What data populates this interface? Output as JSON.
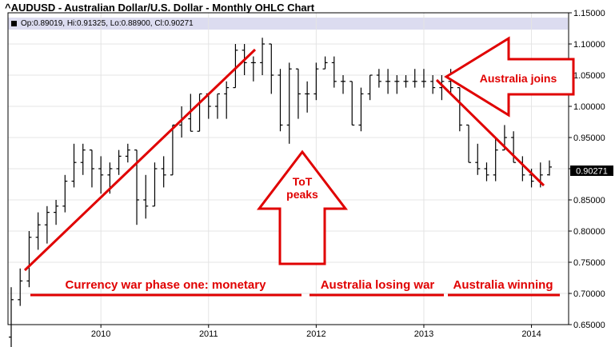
{
  "title": "^AUDUSD - Australian Dollar/U.S. Dollar - Monthly OHLC Chart",
  "ohlc_readout": "Op:0.89019, Hi:0.91325, Lo:0.88900, Cl:0.90271",
  "colors": {
    "annotation": "#e00000",
    "bars": "#000000",
    "readout_bg": "#dcdcf0",
    "grid": "#e4e4e4"
  },
  "chart_data": {
    "type": "ohlc",
    "frequency": "monthly",
    "xlim": [
      "2009-03",
      "2014-03"
    ],
    "ylim": [
      0.65,
      1.15
    ],
    "grid": true,
    "y_ticks": [
      "0.65000",
      "0.70000",
      "0.75000",
      "0.80000",
      "0.85000",
      "0.90000",
      "0.95000",
      "1.00000",
      "1.05000",
      "1.10000",
      "1.15000"
    ],
    "x_ticks": [
      "2010",
      "2011",
      "2012",
      "2013",
      "2014"
    ],
    "last_close_label": "0.90271",
    "bars": [
      [
        "2009-03",
        0.63,
        0.71,
        0.6,
        0.69
      ],
      [
        "2009-04",
        0.69,
        0.74,
        0.68,
        0.72
      ],
      [
        "2009-05",
        0.72,
        0.8,
        0.71,
        0.79
      ],
      [
        "2009-06",
        0.79,
        0.83,
        0.77,
        0.81
      ],
      [
        "2009-07",
        0.81,
        0.84,
        0.78,
        0.83
      ],
      [
        "2009-08",
        0.83,
        0.85,
        0.81,
        0.84
      ],
      [
        "2009-09",
        0.84,
        0.89,
        0.83,
        0.88
      ],
      [
        "2009-10",
        0.88,
        0.94,
        0.87,
        0.91
      ],
      [
        "2009-11",
        0.91,
        0.94,
        0.89,
        0.93
      ],
      [
        "2009-12",
        0.93,
        0.93,
        0.87,
        0.9
      ],
      [
        "2010-01",
        0.9,
        0.92,
        0.86,
        0.89
      ],
      [
        "2010-02",
        0.89,
        0.91,
        0.86,
        0.9
      ],
      [
        "2010-03",
        0.9,
        0.93,
        0.89,
        0.92
      ],
      [
        "2010-04",
        0.92,
        0.94,
        0.91,
        0.93
      ],
      [
        "2010-05",
        0.93,
        0.93,
        0.81,
        0.85
      ],
      [
        "2010-06",
        0.85,
        0.89,
        0.82,
        0.84
      ],
      [
        "2010-07",
        0.84,
        0.91,
        0.84,
        0.9
      ],
      [
        "2010-08",
        0.9,
        0.92,
        0.87,
        0.89
      ],
      [
        "2010-09",
        0.89,
        0.97,
        0.89,
        0.97
      ],
      [
        "2010-10",
        0.97,
        1.0,
        0.95,
        0.98
      ],
      [
        "2010-11",
        0.98,
        1.02,
        0.96,
        0.96
      ],
      [
        "2010-12",
        0.96,
        1.02,
        0.96,
        1.02
      ],
      [
        "2011-01",
        1.02,
        1.02,
        0.98,
        1.0
      ],
      [
        "2011-02",
        1.0,
        1.02,
        0.98,
        1.02
      ],
      [
        "2011-03",
        1.02,
        1.04,
        0.98,
        1.03
      ],
      [
        "2011-04",
        1.03,
        1.1,
        1.03,
        1.09
      ],
      [
        "2011-05",
        1.09,
        1.1,
        1.05,
        1.07
      ],
      [
        "2011-06",
        1.07,
        1.08,
        1.04,
        1.07
      ],
      [
        "2011-07",
        1.07,
        1.11,
        1.05,
        1.1
      ],
      [
        "2011-08",
        1.1,
        1.1,
        1.02,
        1.05
      ],
      [
        "2011-09",
        1.05,
        1.06,
        0.96,
        0.97
      ],
      [
        "2011-10",
        0.97,
        1.07,
        0.94,
        1.06
      ],
      [
        "2011-11",
        1.06,
        1.06,
        0.98,
        1.02
      ],
      [
        "2011-12",
        1.02,
        1.04,
        0.99,
        1.02
      ],
      [
        "2012-01",
        1.02,
        1.07,
        1.01,
        1.06
      ],
      [
        "2012-02",
        1.06,
        1.08,
        1.06,
        1.07
      ],
      [
        "2012-03",
        1.07,
        1.08,
        1.03,
        1.04
      ],
      [
        "2012-04",
        1.04,
        1.05,
        1.02,
        1.04
      ],
      [
        "2012-05",
        1.04,
        1.04,
        0.97,
        0.97
      ],
      [
        "2012-06",
        0.97,
        1.03,
        0.96,
        1.02
      ],
      [
        "2012-07",
        1.02,
        1.05,
        1.01,
        1.05
      ],
      [
        "2012-08",
        1.05,
        1.06,
        1.03,
        1.04
      ],
      [
        "2012-09",
        1.04,
        1.06,
        1.02,
        1.04
      ],
      [
        "2012-10",
        1.04,
        1.05,
        1.02,
        1.04
      ],
      [
        "2012-11",
        1.04,
        1.05,
        1.03,
        1.04
      ],
      [
        "2012-12",
        1.04,
        1.06,
        1.03,
        1.04
      ],
      [
        "2013-01",
        1.04,
        1.06,
        1.03,
        1.04
      ],
      [
        "2013-02",
        1.04,
        1.05,
        1.02,
        1.03
      ],
      [
        "2013-03",
        1.03,
        1.05,
        1.01,
        1.04
      ],
      [
        "2013-04",
        1.04,
        1.06,
        1.02,
        1.03
      ],
      [
        "2013-05",
        1.03,
        1.03,
        0.96,
        0.97
      ],
      [
        "2013-06",
        0.97,
        0.97,
        0.91,
        0.91
      ],
      [
        "2013-07",
        0.91,
        0.94,
        0.89,
        0.9
      ],
      [
        "2013-08",
        0.9,
        0.91,
        0.88,
        0.89
      ],
      [
        "2013-09",
        0.89,
        0.95,
        0.88,
        0.93
      ],
      [
        "2013-10",
        0.93,
        0.97,
        0.93,
        0.95
      ],
      [
        "2013-11",
        0.95,
        0.96,
        0.91,
        0.91
      ],
      [
        "2013-12",
        0.91,
        0.92,
        0.88,
        0.89
      ],
      [
        "2014-01",
        0.89,
        0.9,
        0.87,
        0.88
      ],
      [
        "2014-02",
        0.88,
        0.91,
        0.87,
        0.89
      ],
      [
        "2014-03",
        0.89019,
        0.91325,
        0.889,
        0.90271
      ]
    ]
  },
  "annotations": {
    "australia_joins": "Australia joins",
    "tot_peaks_line1": "ToT",
    "tot_peaks_line2": "peaks",
    "phase_one": "Currency war phase one: monetary",
    "losing": "Australia losing war",
    "winning": "Australia winning"
  }
}
